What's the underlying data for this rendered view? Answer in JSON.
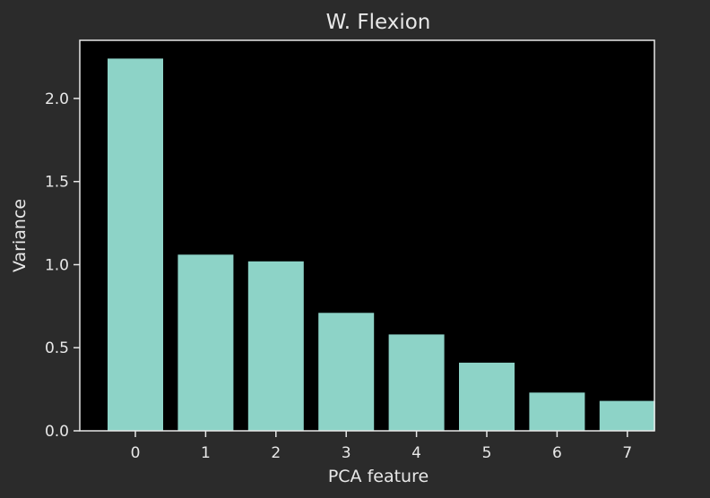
{
  "chart_data": {
    "type": "bar",
    "title": "W. Flexion",
    "xlabel": "PCA feature",
    "ylabel": "Variance",
    "categories": [
      "0",
      "1",
      "2",
      "3",
      "4",
      "5",
      "6",
      "7"
    ],
    "values": [
      2.24,
      1.06,
      1.02,
      0.71,
      0.58,
      0.41,
      0.23,
      0.18
    ],
    "ylim": [
      0,
      2.35
    ],
    "yticks": [
      0.0,
      0.5,
      1.0,
      1.5,
      2.0
    ],
    "ytick_labels": [
      "0.0",
      "0.5",
      "1.0",
      "1.5",
      "2.0"
    ],
    "grid": false,
    "colors": {
      "background": "#2b2b2b",
      "plot_background": "#000000",
      "bar": "#8dd3c7",
      "text": "#e8e8e8",
      "axis": "#e8e8e8"
    }
  }
}
